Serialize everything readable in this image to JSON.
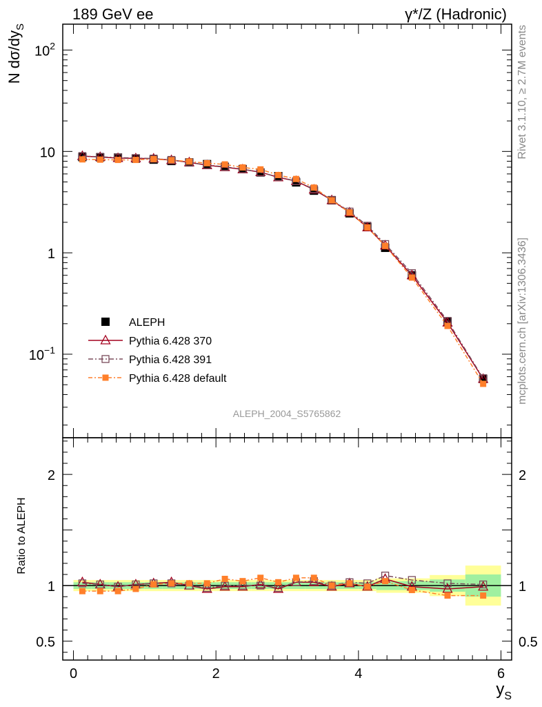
{
  "header": {
    "left_label": "189 GeV ee",
    "right_label": "γ*/Z (Hadronic)"
  },
  "side_labels": {
    "rivet": "Rivet 3.1.10, ≥ 2.7M events",
    "mcplots": "mcplots.cern.ch [arXiv:1306.3436]"
  },
  "watermark": "ALEPH_2004_S5765862",
  "chart_data": [
    {
      "type": "line",
      "ylabel": "N dσ/dy_S",
      "yscale": "log",
      "ylim": [
        0.015,
        180
      ],
      "xlim": [
        -0.15,
        6.15
      ],
      "ytick_labels": [
        {
          "value": 0.1,
          "base": "10",
          "exp": "−1"
        },
        {
          "value": 1,
          "base": "1",
          "exp": ""
        },
        {
          "value": 10,
          "base": "10",
          "exp": ""
        },
        {
          "value": 100,
          "base": "10",
          "exp": "2"
        }
      ],
      "x": [
        0.125,
        0.375,
        0.625,
        0.875,
        1.125,
        1.375,
        1.625,
        1.875,
        2.125,
        2.375,
        2.625,
        2.875,
        3.125,
        3.375,
        3.625,
        3.875,
        4.125,
        4.375,
        4.75,
        5.25,
        5.75
      ],
      "series": [
        {
          "name": "ALEPH",
          "color": "#000000",
          "marker": "filled-square",
          "values": [
            8.8,
            8.75,
            8.7,
            8.5,
            8.3,
            8.05,
            7.8,
            7.5,
            7.05,
            6.7,
            6.2,
            5.7,
            4.95,
            4.1,
            3.3,
            2.45,
            1.8,
            1.12,
            0.6,
            0.21,
            0.057
          ]
        },
        {
          "name": "Pythia 6.428 370",
          "color": "#a3001e",
          "marker": "open-triangle",
          "dash": "",
          "values": [
            9.0,
            8.8,
            8.6,
            8.55,
            8.5,
            8.2,
            7.8,
            7.3,
            7.0,
            6.65,
            6.25,
            5.55,
            5.1,
            4.2,
            3.3,
            2.5,
            1.78,
            1.18,
            0.6,
            0.205,
            0.057
          ]
        },
        {
          "name": "Pythia 6.428 391",
          "color": "#7a4a5a",
          "marker": "open-square",
          "dash": "7,3,2,3",
          "values": [
            9.0,
            8.85,
            8.7,
            8.6,
            8.5,
            8.25,
            7.8,
            7.35,
            7.05,
            6.7,
            6.2,
            5.6,
            5.1,
            4.25,
            3.33,
            2.55,
            1.85,
            1.22,
            0.63,
            0.213,
            0.058
          ]
        },
        {
          "name": "Pythia 6.428 default",
          "color": "#ff7f2a",
          "marker": "filled-square",
          "dash": "6,3,2,3",
          "values": [
            8.35,
            8.3,
            8.25,
            8.25,
            8.4,
            8.2,
            7.95,
            7.65,
            7.45,
            6.95,
            6.65,
            5.85,
            5.35,
            4.4,
            3.3,
            2.5,
            1.78,
            1.17,
            0.57,
            0.19,
            0.051
          ]
        }
      ],
      "legend_position": "lower-left"
    },
    {
      "type": "line",
      "ylabel": "Ratio to ALEPH",
      "xlabel": "y_S",
      "ylim": [
        0.33,
        2.33
      ],
      "xlim": [
        -0.15,
        6.15
      ],
      "xticks": [
        0,
        2,
        4,
        6
      ],
      "ytick_labels": [
        {
          "value": 0.5,
          "label": "0.5"
        },
        {
          "value": 1,
          "label": "1"
        },
        {
          "value": 2,
          "label": "2"
        }
      ],
      "bands": {
        "edges": [
          0,
          0.25,
          0.5,
          0.75,
          1.0,
          1.25,
          1.5,
          1.75,
          2.0,
          2.25,
          2.5,
          2.75,
          3.0,
          3.25,
          3.5,
          3.75,
          4.0,
          4.25,
          4.5,
          5.0,
          5.5,
          6.0
        ],
        "stat": [
          0.03,
          0.03,
          0.03,
          0.03,
          0.03,
          0.03,
          0.03,
          0.03,
          0.03,
          0.03,
          0.03,
          0.03,
          0.03,
          0.03,
          0.03,
          0.03,
          0.03,
          0.04,
          0.04,
          0.055,
          0.1
        ],
        "total": [
          0.05,
          0.05,
          0.05,
          0.05,
          0.05,
          0.05,
          0.05,
          0.05,
          0.05,
          0.05,
          0.05,
          0.05,
          0.05,
          0.05,
          0.05,
          0.05,
          0.05,
          0.065,
          0.065,
          0.095,
          0.18
        ],
        "stat_color": "#a0f0a0",
        "total_color": "#ffff99"
      },
      "series": [
        {
          "name": "Pythia 6.428 370",
          "values": [
            1.03,
            1.01,
            0.99,
            1.01,
            1.02,
            1.03,
            1.0,
            0.97,
            0.99,
            0.99,
            1.01,
            0.97,
            1.03,
            1.03,
            0.99,
            1.02,
            0.99,
            1.06,
            0.99,
            0.97,
            0.99
          ]
        },
        {
          "name": "Pythia 6.428 391",
          "values": [
            1.02,
            1.01,
            0.99,
            1.01,
            1.02,
            1.02,
            1.0,
            0.98,
            1.0,
            1.0,
            1.0,
            0.98,
            1.03,
            1.04,
            1.0,
            1.03,
            1.02,
            1.09,
            1.05,
            1.02,
            1.01
          ]
        },
        {
          "name": "Pythia 6.428 default",
          "values": [
            0.95,
            0.95,
            0.95,
            0.97,
            1.01,
            1.02,
            1.02,
            1.02,
            1.06,
            1.04,
            1.07,
            1.03,
            1.07,
            1.07,
            1.0,
            1.02,
            0.99,
            1.04,
            0.96,
            0.91,
            0.91
          ]
        }
      ]
    }
  ]
}
